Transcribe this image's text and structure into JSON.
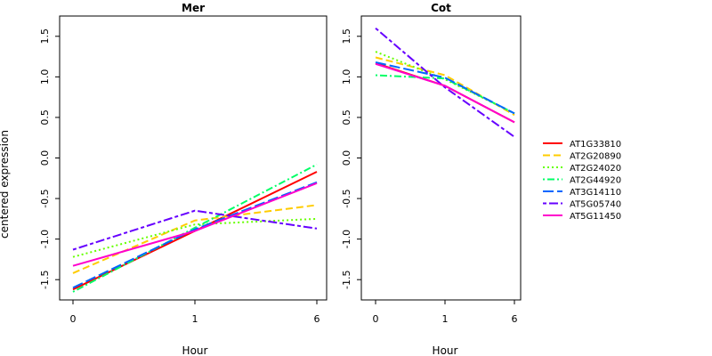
{
  "chart_data": {
    "type": "line",
    "ylabel": "centered expression",
    "xlabel": "Hour",
    "x_ticks": [
      "0",
      "1",
      "6"
    ],
    "y_ticks": [
      "-1.5",
      "-1.0",
      "-0.5",
      "0.0",
      "0.5",
      "1.0",
      "1.5"
    ],
    "legend": {
      "placement": "right",
      "entries": [
        {
          "name": "AT1G33810",
          "color": "#ff0000",
          "dash": "solid"
        },
        {
          "name": "AT2G20890",
          "color": "#ffcc00",
          "dash": "dashed"
        },
        {
          "name": "AT2G24020",
          "color": "#66ff00",
          "dash": "dotted"
        },
        {
          "name": "AT2G44920",
          "color": "#00ff66",
          "dash": "dotdash"
        },
        {
          "name": "AT3G14110",
          "color": "#0066ff",
          "dash": "longdash"
        },
        {
          "name": "AT5G05740",
          "color": "#6600ff",
          "dash": "twodash"
        },
        {
          "name": "AT5G11450",
          "color": "#ff00cc",
          "dash": "solid"
        }
      ]
    },
    "panels": [
      {
        "title": "Mer",
        "ylim": [
          -1.75,
          1.75
        ],
        "series": [
          {
            "name": "AT1G33810",
            "values": [
              -1.62,
              -0.9,
              -0.17
            ]
          },
          {
            "name": "AT2G20890",
            "values": [
              -1.42,
              -0.77,
              -0.58
            ]
          },
          {
            "name": "AT2G24020",
            "values": [
              -1.22,
              -0.82,
              -0.75
            ]
          },
          {
            "name": "AT2G44920",
            "values": [
              -1.65,
              -0.86,
              -0.08
            ]
          },
          {
            "name": "AT3G14110",
            "values": [
              -1.6,
              -0.88,
              -0.3
            ]
          },
          {
            "name": "AT5G05740",
            "values": [
              -1.13,
              -0.65,
              -0.87
            ]
          },
          {
            "name": "AT5G11450",
            "values": [
              -1.33,
              -0.9,
              -0.31
            ]
          }
        ]
      },
      {
        "title": "Cot",
        "ylim": [
          -1.75,
          1.75
        ],
        "series": [
          {
            "name": "AT1G33810",
            "values": [
              1.17,
              0.89,
              0.44
            ]
          },
          {
            "name": "AT2G20890",
            "values": [
              1.24,
              1.02,
              0.53
            ]
          },
          {
            "name": "AT2G24020",
            "values": [
              1.31,
              0.97,
              0.55
            ]
          },
          {
            "name": "AT2G44920",
            "values": [
              1.02,
              0.98,
              0.55
            ]
          },
          {
            "name": "AT3G14110",
            "values": [
              1.18,
              0.99,
              0.55
            ]
          },
          {
            "name": "AT5G05740",
            "values": [
              1.6,
              0.87,
              0.26
            ]
          },
          {
            "name": "AT5G11450",
            "values": [
              1.16,
              0.89,
              0.44
            ]
          }
        ]
      }
    ]
  }
}
